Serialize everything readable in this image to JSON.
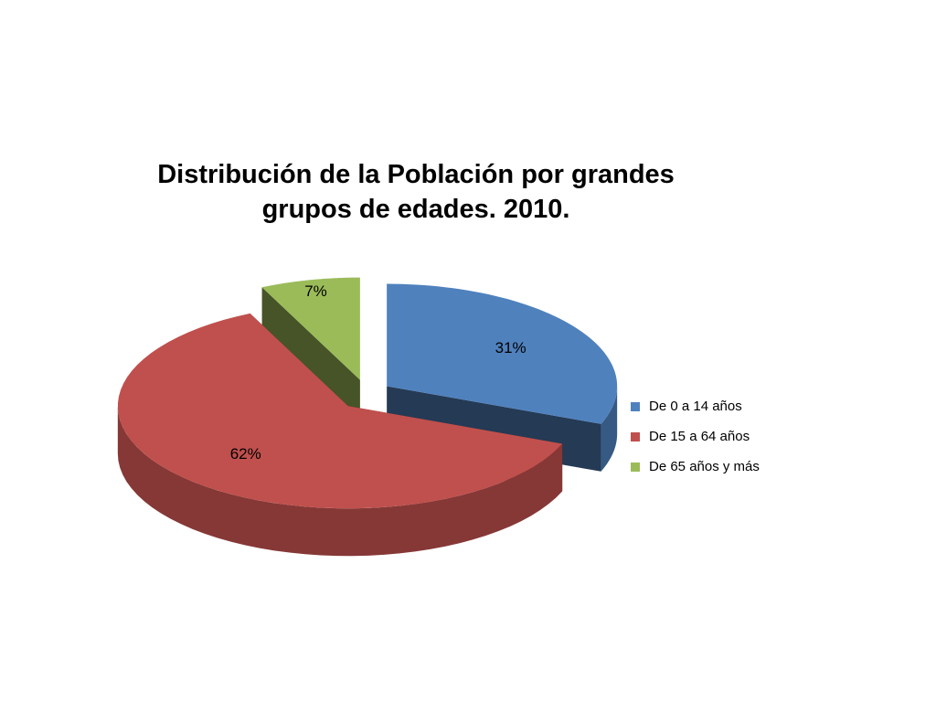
{
  "chart_data": {
    "type": "pie3d",
    "title": "Distribución de la Población por grandes grupos de edades. 2010.",
    "categories": [
      "De 0 a 14 años",
      "De 15 a 64 años",
      "De 65 años y más"
    ],
    "values": [
      31,
      62,
      7
    ],
    "value_labels": [
      "31%",
      "62%",
      "7%"
    ],
    "colors": [
      "#4f81bd",
      "#c0504d",
      "#9bbb59"
    ],
    "legend": "right"
  }
}
